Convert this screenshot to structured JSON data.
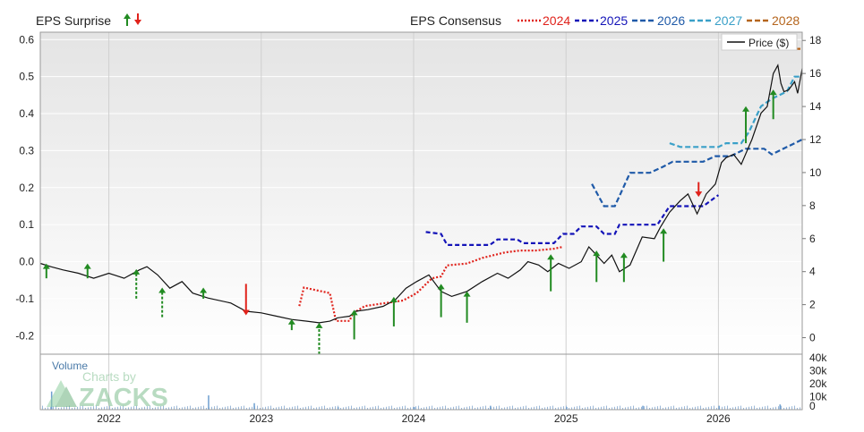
{
  "chart_data": {
    "type": "line",
    "legend": {
      "surprise_label": "EPS Surprise",
      "consensus_label": "EPS Consensus",
      "price_label": "Price ($)",
      "position": "top"
    },
    "volume_label": "Volume",
    "watermark": {
      "line1": "Charts by",
      "line2": "ZACKS"
    },
    "x_ticks": [
      "2022",
      "2023",
      "2024",
      "2025",
      "2026"
    ],
    "x_range": [
      2021.55,
      2026.55
    ],
    "left_axis": {
      "range": [
        -0.25,
        0.62
      ],
      "ticks": [
        "0.6",
        "0.5",
        "0.4",
        "0.3",
        "0.2",
        "0.1",
        "0.0",
        "-0.1",
        "-0.2"
      ]
    },
    "right_axis": {
      "range": [
        -1,
        18.5
      ],
      "ticks": [
        "18",
        "16",
        "14",
        "12",
        "10",
        "8",
        "6",
        "4",
        "2",
        "0"
      ]
    },
    "volume_axis": {
      "ticks": [
        "40k",
        "30k",
        "20k",
        "10k",
        "0"
      ],
      "max": 40
    },
    "grid": true,
    "series": [
      {
        "name": "2024",
        "color": "#e0221b",
        "dash": "2,2",
        "points": [
          [
            2023.25,
            -0.12
          ],
          [
            2023.28,
            -0.07
          ],
          [
            2023.45,
            -0.085
          ],
          [
            2023.49,
            -0.16
          ],
          [
            2023.58,
            -0.16
          ],
          [
            2023.6,
            -0.14
          ],
          [
            2023.68,
            -0.12
          ],
          [
            2023.93,
            -0.105
          ],
          [
            2024.02,
            -0.085
          ],
          [
            2024.12,
            -0.045
          ],
          [
            2024.18,
            -0.04
          ],
          [
            2024.22,
            -0.01
          ],
          [
            2024.35,
            -0.005
          ],
          [
            2024.45,
            0.01
          ],
          [
            2024.6,
            0.025
          ],
          [
            2024.7,
            0.03
          ],
          [
            2024.8,
            0.03
          ],
          [
            2024.92,
            0.035
          ],
          [
            2024.98,
            0.04
          ]
        ]
      },
      {
        "name": "2025",
        "color": "#1414b8",
        "dash": "5,3",
        "points": [
          [
            2024.08,
            0.08
          ],
          [
            2024.18,
            0.075
          ],
          [
            2024.22,
            0.045
          ],
          [
            2024.5,
            0.045
          ],
          [
            2024.55,
            0.06
          ],
          [
            2024.68,
            0.06
          ],
          [
            2024.72,
            0.05
          ],
          [
            2024.92,
            0.05
          ],
          [
            2024.98,
            0.075
          ],
          [
            2025.05,
            0.075
          ],
          [
            2025.1,
            0.095
          ],
          [
            2025.2,
            0.095
          ],
          [
            2025.25,
            0.075
          ],
          [
            2025.32,
            0.075
          ],
          [
            2025.35,
            0.1
          ],
          [
            2025.6,
            0.1
          ],
          [
            2025.68,
            0.15
          ],
          [
            2025.9,
            0.15
          ],
          [
            2026.0,
            0.18
          ]
        ]
      },
      {
        "name": "2026",
        "color": "#1f5aa8",
        "dash": "6,3",
        "points": [
          [
            2025.17,
            0.21
          ],
          [
            2025.25,
            0.15
          ],
          [
            2025.32,
            0.15
          ],
          [
            2025.42,
            0.24
          ],
          [
            2025.55,
            0.24
          ],
          [
            2025.63,
            0.255
          ],
          [
            2025.7,
            0.27
          ],
          [
            2025.9,
            0.27
          ],
          [
            2025.98,
            0.285
          ],
          [
            2026.08,
            0.285
          ],
          [
            2026.18,
            0.305
          ],
          [
            2026.3,
            0.305
          ],
          [
            2026.35,
            0.29
          ],
          [
            2026.45,
            0.31
          ],
          [
            2026.55,
            0.33
          ]
        ]
      },
      {
        "name": "2027",
        "color": "#3aa0c8",
        "dash": "6,3",
        "points": [
          [
            2025.68,
            0.32
          ],
          [
            2025.75,
            0.31
          ],
          [
            2026.0,
            0.31
          ],
          [
            2026.05,
            0.32
          ],
          [
            2026.15,
            0.32
          ],
          [
            2026.2,
            0.35
          ],
          [
            2026.28,
            0.42
          ],
          [
            2026.35,
            0.44
          ],
          [
            2026.45,
            0.46
          ],
          [
            2026.5,
            0.5
          ],
          [
            2026.55,
            0.5
          ]
        ]
      },
      {
        "name": "2028",
        "color": "#b5651d",
        "dash": "6,3",
        "points": [
          [
            2026.45,
            0.575
          ],
          [
            2026.55,
            0.575
          ]
        ]
      },
      {
        "name": "Price ($)",
        "color": "#111111",
        "dash": "",
        "axis": "right",
        "points": [
          [
            2021.55,
            4.5
          ],
          [
            2021.62,
            4.3
          ],
          [
            2021.7,
            4.1
          ],
          [
            2021.8,
            3.9
          ],
          [
            2021.9,
            3.6
          ],
          [
            2022.0,
            3.9
          ],
          [
            2022.1,
            3.6
          ],
          [
            2022.2,
            4.1
          ],
          [
            2022.25,
            4.3
          ],
          [
            2022.32,
            3.8
          ],
          [
            2022.4,
            3.0
          ],
          [
            2022.48,
            3.4
          ],
          [
            2022.55,
            2.7
          ],
          [
            2022.65,
            2.4
          ],
          [
            2022.8,
            2.1
          ],
          [
            2022.9,
            1.6
          ],
          [
            2023.0,
            1.5
          ],
          [
            2023.1,
            1.3
          ],
          [
            2023.2,
            1.1
          ],
          [
            2023.3,
            1.0
          ],
          [
            2023.38,
            0.9
          ],
          [
            2023.45,
            1.0
          ],
          [
            2023.5,
            1.2
          ],
          [
            2023.58,
            1.3
          ],
          [
            2023.62,
            1.6
          ],
          [
            2023.7,
            1.7
          ],
          [
            2023.8,
            1.9
          ],
          [
            2023.88,
            2.3
          ],
          [
            2023.95,
            3.0
          ],
          [
            2024.02,
            3.4
          ],
          [
            2024.1,
            3.8
          ],
          [
            2024.18,
            2.8
          ],
          [
            2024.25,
            2.5
          ],
          [
            2024.35,
            2.8
          ],
          [
            2024.45,
            3.4
          ],
          [
            2024.55,
            3.9
          ],
          [
            2024.62,
            3.6
          ],
          [
            2024.7,
            4.1
          ],
          [
            2024.75,
            4.6
          ],
          [
            2024.82,
            4.4
          ],
          [
            2024.88,
            4.0
          ],
          [
            2024.95,
            4.5
          ],
          [
            2025.02,
            4.2
          ],
          [
            2025.1,
            4.6
          ],
          [
            2025.15,
            5.5
          ],
          [
            2025.2,
            5.0
          ],
          [
            2025.25,
            4.5
          ],
          [
            2025.3,
            5.0
          ],
          [
            2025.35,
            4.0
          ],
          [
            2025.42,
            4.4
          ],
          [
            2025.5,
            6.1
          ],
          [
            2025.58,
            6.0
          ],
          [
            2025.62,
            6.7
          ],
          [
            2025.68,
            7.6
          ],
          [
            2025.75,
            8.3
          ],
          [
            2025.8,
            8.7
          ],
          [
            2025.86,
            7.5
          ],
          [
            2025.92,
            8.7
          ],
          [
            2025.98,
            9.3
          ],
          [
            2026.02,
            10.6
          ],
          [
            2026.05,
            10.9
          ],
          [
            2026.1,
            11.1
          ],
          [
            2026.15,
            10.5
          ],
          [
            2026.22,
            12.0
          ],
          [
            2026.28,
            13.6
          ],
          [
            2026.32,
            14.0
          ],
          [
            2026.36,
            16.0
          ],
          [
            2026.39,
            16.5
          ],
          [
            2026.41,
            15.4
          ],
          [
            2026.43,
            14.9
          ],
          [
            2026.46,
            15.0
          ],
          [
            2026.5,
            15.5
          ],
          [
            2026.52,
            14.8
          ],
          [
            2026.55,
            16.3
          ]
        ]
      }
    ],
    "surprise_arrows": [
      {
        "x": 2021.59,
        "from": -0.045,
        "to": -0.005,
        "dir": "up",
        "color": "#228b22"
      },
      {
        "x": 2021.86,
        "from": -0.045,
        "to": -0.005,
        "dir": "up",
        "color": "#228b22"
      },
      {
        "x": 2022.18,
        "from": -0.1,
        "to": -0.02,
        "dir": "up",
        "color": "#228b22"
      },
      {
        "x": 2022.35,
        "from": -0.15,
        "to": -0.07,
        "dir": "up",
        "color": "#228b22"
      },
      {
        "x": 2022.62,
        "from": -0.1,
        "to": -0.07,
        "dir": "up",
        "color": "#228b22"
      },
      {
        "x": 2022.9,
        "from": -0.06,
        "to": -0.145,
        "dir": "down",
        "color": "#e0221b"
      },
      {
        "x": 2023.2,
        "from": -0.185,
        "to": -0.155,
        "dir": "up",
        "color": "#228b22"
      },
      {
        "x": 2023.38,
        "from": -0.25,
        "to": -0.165,
        "dir": "up",
        "color": "#228b22"
      },
      {
        "x": 2023.61,
        "from": -0.21,
        "to": -0.13,
        "dir": "up",
        "color": "#228b22"
      },
      {
        "x": 2023.87,
        "from": -0.175,
        "to": -0.095,
        "dir": "up",
        "color": "#228b22"
      },
      {
        "x": 2024.18,
        "from": -0.15,
        "to": -0.06,
        "dir": "up",
        "color": "#228b22"
      },
      {
        "x": 2024.35,
        "from": -0.165,
        "to": -0.08,
        "dir": "up",
        "color": "#228b22"
      },
      {
        "x": 2024.9,
        "from": -0.08,
        "to": 0.02,
        "dir": "up",
        "color": "#228b22"
      },
      {
        "x": 2025.2,
        "from": -0.055,
        "to": 0.03,
        "dir": "up",
        "color": "#228b22"
      },
      {
        "x": 2025.38,
        "from": -0.055,
        "to": 0.025,
        "dir": "up",
        "color": "#228b22"
      },
      {
        "x": 2025.64,
        "from": 0.0,
        "to": 0.09,
        "dir": "up",
        "color": "#228b22"
      },
      {
        "x": 2025.87,
        "from": 0.215,
        "to": 0.175,
        "dir": "down",
        "color": "#e0221b"
      },
      {
        "x": 2026.18,
        "from": 0.32,
        "to": 0.42,
        "dir": "up",
        "color": "#228b22"
      },
      {
        "x": 2026.36,
        "from": 0.385,
        "to": 0.465,
        "dir": "up",
        "color": "#228b22"
      }
    ],
    "volume_spikes": [
      [
        2021.62,
        14
      ],
      [
        2022.65,
        11
      ],
      [
        2022.95,
        5
      ],
      [
        2023.5,
        2
      ],
      [
        2024.0,
        2
      ],
      [
        2024.5,
        3
      ],
      [
        2025.0,
        2
      ],
      [
        2025.5,
        3
      ],
      [
        2026.0,
        3
      ],
      [
        2026.4,
        4
      ]
    ]
  }
}
